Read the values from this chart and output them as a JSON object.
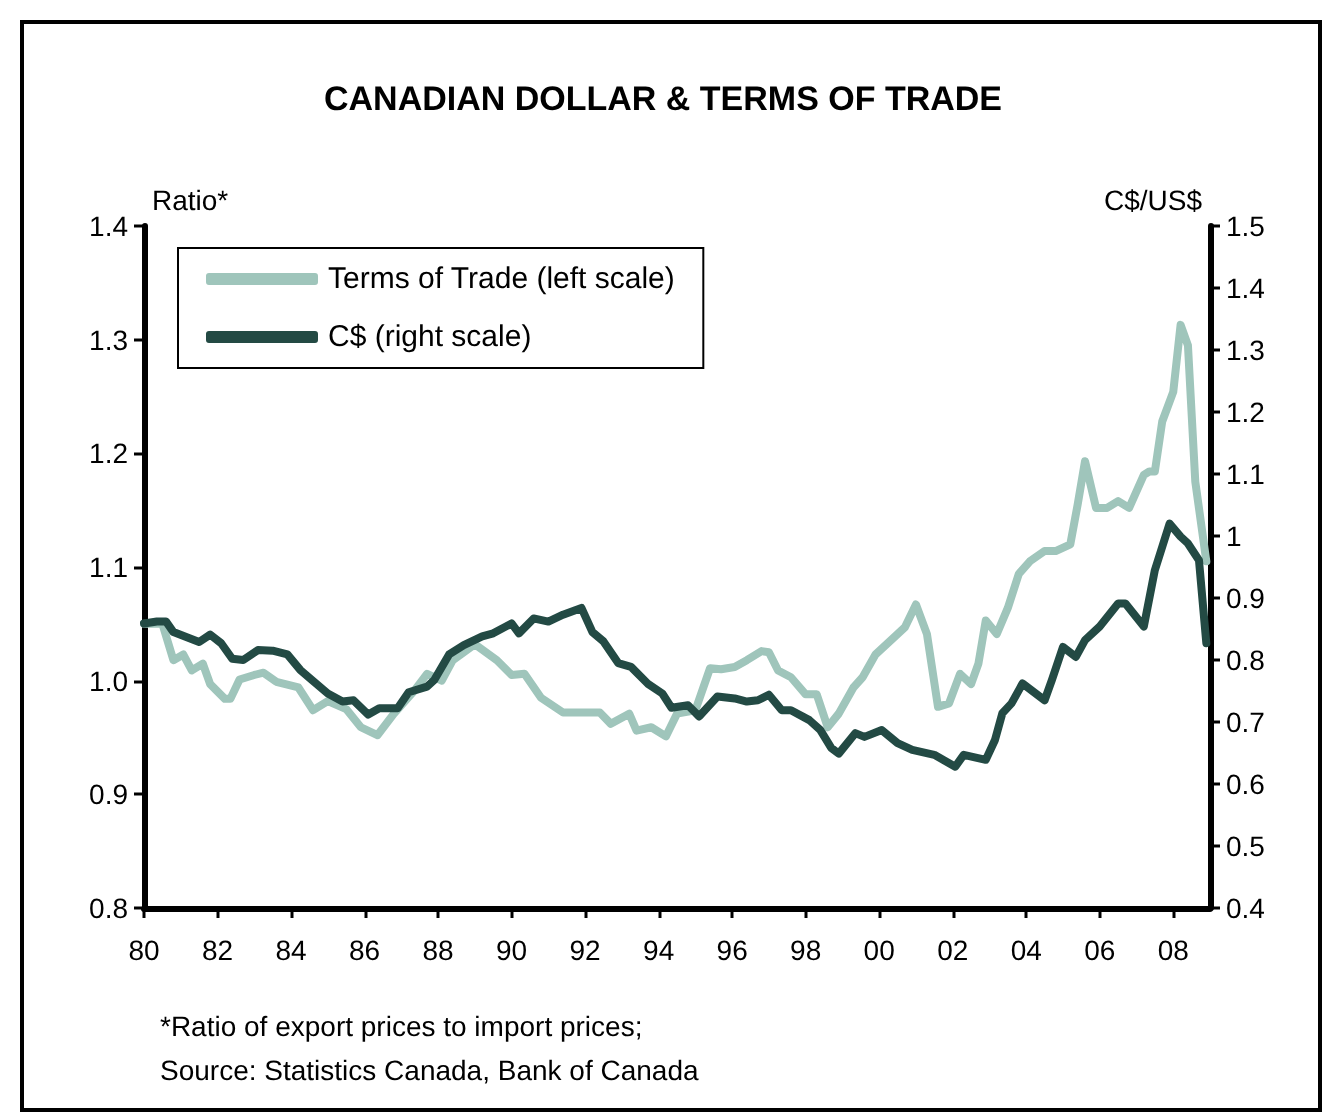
{
  "chart_data": {
    "type": "line",
    "title": "CANADIAN DOLLAR & TERMS OF TRADE",
    "ylabel": "Ratio*",
    "y2label": "C$/US$",
    "annotations": [
      "*Ratio of export prices to import prices;",
      "Source: Statistics Canada, Bank of Canada"
    ],
    "xlim": [
      1980,
      2009
    ],
    "xticks": [
      {
        "value": 1980,
        "label": "80"
      },
      {
        "value": 1982,
        "label": "82"
      },
      {
        "value": 1984,
        "label": "84"
      },
      {
        "value": 1986,
        "label": "86"
      },
      {
        "value": 1988,
        "label": "88"
      },
      {
        "value": 1990,
        "label": "90"
      },
      {
        "value": 1992,
        "label": "92"
      },
      {
        "value": 1994,
        "label": "94"
      },
      {
        "value": 1996,
        "label": "96"
      },
      {
        "value": 1998,
        "label": "98"
      },
      {
        "value": 2000,
        "label": "00"
      },
      {
        "value": 2002,
        "label": "02"
      },
      {
        "value": 2004,
        "label": "04"
      },
      {
        "value": 2006,
        "label": "06"
      },
      {
        "value": 2008,
        "label": "08"
      }
    ],
    "ylim": [
      0.8,
      1.4
    ],
    "yticks": [
      0.8,
      0.9,
      {
        "value": 1,
        "label": "1.0"
      },
      1.1,
      1.2,
      1.3,
      1.4
    ],
    "y2lim": [
      0.4,
      1.5
    ],
    "y2ticks": [
      0.4,
      0.5,
      0.6,
      0.7,
      0.8,
      0.9,
      1,
      1.1,
      1.2,
      1.3,
      1.4,
      1.5
    ],
    "grid": false,
    "legend": "top left",
    "marker": "none",
    "line_style": "solid",
    "series": [
      {
        "name": "Terms of Trade (left scale)",
        "color": "#9fc5bb",
        "x": [
          1980.0,
          1980.5,
          1980.8,
          1981.07,
          1981.3,
          1981.6,
          1981.8,
          1982.2,
          1982.35,
          1982.6,
          1983.0,
          1983.25,
          1983.6,
          1984.2,
          1984.6,
          1985.0,
          1985.5,
          1985.9,
          1986.35,
          1986.8,
          1987.35,
          1987.7,
          1988.1,
          1988.4,
          1989.0,
          1989.6,
          1990.0,
          1990.35,
          1990.8,
          1991.4,
          1992.4,
          1992.7,
          1993.2,
          1993.4,
          1993.8,
          1994.2,
          1994.5,
          1995.0,
          1995.4,
          1995.7,
          1996.07,
          1996.4,
          1996.8,
          1997.0,
          1997.25,
          1997.6,
          1998.0,
          1998.3,
          1998.6,
          1998.9,
          1999.3,
          1999.55,
          1999.9,
          2000.4,
          2000.7,
          2001.0,
          2001.3,
          2001.6,
          2001.9,
          2002.2,
          2002.5,
          2002.7,
          2002.9,
          2003.2,
          2003.5,
          2003.8,
          2004.1,
          2004.5,
          2004.8,
          2005.2,
          2005.4,
          2005.6,
          2005.9,
          2006.2,
          2006.5,
          2006.8,
          2007.2,
          2007.35,
          2007.5,
          2007.7,
          2008.0,
          2008.2,
          2008.4,
          2008.6,
          2008.9
        ],
        "values": [
          1.05,
          1.05,
          1.018,
          1.023,
          1.009,
          1.015,
          0.997,
          0.984,
          0.984,
          1.001,
          1.005,
          1.007,
          0.999,
          0.994,
          0.974,
          0.982,
          0.975,
          0.959,
          0.952,
          0.971,
          0.991,
          1.006,
          1.0,
          1.018,
          1.032,
          1.018,
          1.005,
          1.006,
          0.985,
          0.972,
          0.972,
          0.962,
          0.971,
          0.956,
          0.959,
          0.951,
          0.971,
          0.974,
          1.011,
          1.01,
          1.012,
          1.018,
          1.026,
          1.025,
          1.009,
          1.003,
          0.988,
          0.988,
          0.959,
          0.971,
          0.994,
          1.003,
          1.023,
          1.038,
          1.047,
          1.067,
          1.041,
          0.977,
          0.98,
          1.006,
          0.997,
          1.015,
          1.053,
          1.041,
          1.064,
          1.094,
          1.105,
          1.114,
          1.114,
          1.12,
          1.155,
          1.193,
          1.152,
          1.152,
          1.158,
          1.152,
          1.181,
          1.184,
          1.184,
          1.228,
          1.254,
          1.313,
          1.295,
          1.175,
          1.105
        ]
      },
      {
        "name": "C$ (right scale)",
        "color": "#234a44",
        "axis": "y2",
        "x": [
          1980.0,
          1980.35,
          1980.6,
          1980.8,
          1981.5,
          1981.8,
          1982.1,
          1982.4,
          1982.7,
          1983.1,
          1983.5,
          1983.9,
          1984.25,
          1984.6,
          1985.0,
          1985.4,
          1985.7,
          1986.1,
          1986.4,
          1986.9,
          1987.2,
          1987.7,
          1987.9,
          1988.3,
          1988.7,
          1989.2,
          1989.5,
          1990.0,
          1990.2,
          1990.6,
          1991.0,
          1991.4,
          1991.9,
          1992.2,
          1992.5,
          1992.9,
          1993.25,
          1993.7,
          1994.1,
          1994.35,
          1994.8,
          1995.1,
          1995.6,
          1996.07,
          1996.4,
          1996.7,
          1997.0,
          1997.35,
          1997.6,
          1998.1,
          1998.4,
          1998.7,
          1998.9,
          1999.35,
          1999.6,
          2000.07,
          2000.5,
          2000.9,
          2001.5,
          2002.07,
          2002.3,
          2002.9,
          2003.15,
          2003.35,
          2003.6,
          2003.9,
          2004.5,
          2004.7,
          2005.0,
          2005.35,
          2005.6,
          2006.0,
          2006.5,
          2006.7,
          2007.2,
          2007.5,
          2007.9,
          2008.2,
          2008.4,
          2008.7,
          2008.9
        ],
        "values": [
          0.859,
          0.862,
          0.862,
          0.845,
          0.829,
          0.841,
          0.827,
          0.802,
          0.8,
          0.816,
          0.815,
          0.809,
          0.784,
          0.766,
          0.746,
          0.733,
          0.735,
          0.712,
          0.722,
          0.722,
          0.748,
          0.757,
          0.768,
          0.809,
          0.824,
          0.838,
          0.843,
          0.859,
          0.843,
          0.867,
          0.862,
          0.873,
          0.884,
          0.845,
          0.83,
          0.795,
          0.789,
          0.762,
          0.746,
          0.723,
          0.727,
          0.709,
          0.741,
          0.738,
          0.733,
          0.735,
          0.744,
          0.719,
          0.719,
          0.703,
          0.687,
          0.658,
          0.649,
          0.682,
          0.676,
          0.687,
          0.666,
          0.655,
          0.647,
          0.628,
          0.647,
          0.639,
          0.671,
          0.714,
          0.73,
          0.762,
          0.735,
          0.768,
          0.821,
          0.805,
          0.832,
          0.854,
          0.891,
          0.891,
          0.854,
          0.945,
          1.02,
          0.999,
          0.988,
          0.961,
          0.827
        ]
      }
    ]
  }
}
